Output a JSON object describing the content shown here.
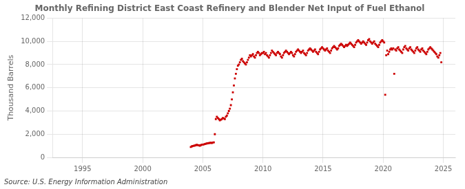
{
  "chart_data": {
    "type": "scatter",
    "title": "Monthly Refining District East Coast Refinery and Blender Net Input of Fuel Ethanol",
    "ylabel": "Thousand Barrels",
    "annotation": "Source: U.S. Energy Information Administration",
    "color": "#CC0000",
    "marker": "square",
    "grid": true,
    "xlim": [
      1992.5,
      2026.0
    ],
    "xticks": [
      1995,
      2000,
      2005,
      2010,
      2015,
      2020,
      2025
    ],
    "ylim": [
      0,
      12000
    ],
    "yticks": [
      0,
      {
        "value": 2000,
        "label": "2,000"
      },
      {
        "value": 4000,
        "label": "4,000"
      },
      {
        "value": 6000,
        "label": "6,000"
      },
      {
        "value": 8000,
        "label": "8,000"
      },
      {
        "value": 10000,
        "label": "10,000"
      },
      {
        "value": 12000,
        "label": "12,000"
      }
    ],
    "x": [
      2004.0,
      2004.083,
      2004.167,
      2004.25,
      2004.333,
      2004.417,
      2004.5,
      2004.583,
      2004.667,
      2004.75,
      2004.833,
      2004.917,
      2005.0,
      2005.083,
      2005.167,
      2005.25,
      2005.333,
      2005.417,
      2005.5,
      2005.583,
      2005.667,
      2005.75,
      2005.833,
      2005.917,
      2006.0,
      2006.083,
      2006.167,
      2006.25,
      2006.333,
      2006.417,
      2006.5,
      2006.583,
      2006.667,
      2006.75,
      2006.833,
      2006.917,
      2007.0,
      2007.083,
      2007.167,
      2007.25,
      2007.333,
      2007.417,
      2007.5,
      2007.583,
      2007.667,
      2007.75,
      2007.833,
      2007.917,
      2008.0,
      2008.083,
      2008.167,
      2008.25,
      2008.333,
      2008.417,
      2008.5,
      2008.583,
      2008.667,
      2008.75,
      2008.833,
      2008.917,
      2009.0,
      2009.083,
      2009.167,
      2009.25,
      2009.333,
      2009.417,
      2009.5,
      2009.583,
      2009.667,
      2009.75,
      2009.833,
      2009.917,
      2010.0,
      2010.083,
      2010.167,
      2010.25,
      2010.333,
      2010.417,
      2010.5,
      2010.583,
      2010.667,
      2010.75,
      2010.833,
      2010.917,
      2011.0,
      2011.083,
      2011.167,
      2011.25,
      2011.333,
      2011.417,
      2011.5,
      2011.583,
      2011.667,
      2011.75,
      2011.833,
      2011.917,
      2012.0,
      2012.083,
      2012.167,
      2012.25,
      2012.333,
      2012.417,
      2012.5,
      2012.583,
      2012.667,
      2012.75,
      2012.833,
      2012.917,
      2013.0,
      2013.083,
      2013.167,
      2013.25,
      2013.333,
      2013.417,
      2013.5,
      2013.583,
      2013.667,
      2013.75,
      2013.833,
      2013.917,
      2014.0,
      2014.083,
      2014.167,
      2014.25,
      2014.333,
      2014.417,
      2014.5,
      2014.583,
      2014.667,
      2014.75,
      2014.833,
      2014.917,
      2015.0,
      2015.083,
      2015.167,
      2015.25,
      2015.333,
      2015.417,
      2015.5,
      2015.583,
      2015.667,
      2015.75,
      2015.833,
      2015.917,
      2016.0,
      2016.083,
      2016.167,
      2016.25,
      2016.333,
      2016.417,
      2016.5,
      2016.583,
      2016.667,
      2016.75,
      2016.833,
      2016.917,
      2017.0,
      2017.083,
      2017.167,
      2017.25,
      2017.333,
      2017.417,
      2017.5,
      2017.583,
      2017.667,
      2017.75,
      2017.833,
      2017.917,
      2018.0,
      2018.083,
      2018.167,
      2018.25,
      2018.333,
      2018.417,
      2018.5,
      2018.583,
      2018.667,
      2018.75,
      2018.833,
      2018.917,
      2019.0,
      2019.083,
      2019.167,
      2019.25,
      2019.333,
      2019.417,
      2019.5,
      2019.583,
      2019.667,
      2019.75,
      2019.833,
      2019.917,
      2020.0,
      2020.083,
      2020.167,
      2020.25,
      2020.333,
      2020.417,
      2020.5,
      2020.583,
      2020.667,
      2020.75,
      2020.833,
      2020.917,
      2021.0,
      2021.083,
      2021.167,
      2021.25,
      2021.333,
      2021.417,
      2021.5,
      2021.583,
      2021.667,
      2021.75,
      2021.833,
      2021.917,
      2022.0,
      2022.083,
      2022.167,
      2022.25,
      2022.333,
      2022.417,
      2022.5,
      2022.583,
      2022.667,
      2022.75,
      2022.833,
      2022.917,
      2023.0,
      2023.083,
      2023.167,
      2023.25,
      2023.333,
      2023.417,
      2023.5,
      2023.583,
      2023.667,
      2023.75,
      2023.833,
      2023.917,
      2024.0,
      2024.083,
      2024.167,
      2024.25,
      2024.333,
      2024.417,
      2024.5,
      2024.583,
      2024.667,
      2024.75,
      2024.833
    ],
    "values": [
      900,
      950,
      980,
      1000,
      1020,
      1050,
      1080,
      1060,
      1040,
      1000,
      1050,
      1100,
      1100,
      1120,
      1150,
      1180,
      1200,
      1220,
      1230,
      1250,
      1260,
      1240,
      1280,
      1300,
      2000,
      3300,
      3500,
      3400,
      3300,
      3200,
      3250,
      3300,
      3400,
      3350,
      3300,
      3500,
      3600,
      3800,
      4000,
      4200,
      4500,
      5000,
      5600,
      6200,
      6800,
      7200,
      7600,
      7900,
      8000,
      8200,
      8400,
      8500,
      8300,
      8200,
      8100,
      8000,
      8200,
      8400,
      8600,
      8800,
      8700,
      8800,
      8900,
      8700,
      8600,
      8800,
      9000,
      9100,
      9000,
      8800,
      8900,
      9000,
      9000,
      9100,
      8900,
      9000,
      8800,
      8700,
      8600,
      8800,
      9000,
      9200,
      9100,
      9000,
      8900,
      8800,
      9000,
      9100,
      9000,
      8900,
      8700,
      8600,
      8800,
      9000,
      9100,
      9200,
      9100,
      9000,
      8900,
      9000,
      9100,
      9000,
      8800,
      8700,
      8900,
      9100,
      9200,
      9300,
      9200,
      9100,
      9000,
      9100,
      9200,
      9000,
      8900,
      8800,
      9000,
      9200,
      9300,
      9400,
      9300,
      9200,
      9100,
      9200,
      9300,
      9100,
      9000,
      8900,
      9100,
      9300,
      9400,
      9500,
      9400,
      9300,
      9200,
      9300,
      9400,
      9200,
      9100,
      9000,
      9200,
      9400,
      9500,
      9600,
      9500,
      9400,
      9300,
      9400,
      9600,
      9700,
      9800,
      9700,
      9600,
      9500,
      9600,
      9700,
      9600,
      9700,
      9800,
      9900,
      9800,
      9700,
      9600,
      9500,
      9700,
      9900,
      10000,
      10100,
      10000,
      9900,
      9800,
      9900,
      10000,
      9900,
      9800,
      9700,
      9900,
      10100,
      10200,
      10000,
      9900,
      9800,
      9900,
      10000,
      9800,
      9700,
      9600,
      9500,
      9700,
      9900,
      10000,
      10100,
      10000,
      9900,
      5400,
      8800,
      9200,
      8900,
      9100,
      9300,
      9400,
      9300,
      9400,
      7200,
      9300,
      9200,
      9400,
      9500,
      9300,
      9200,
      9100,
      9000,
      9300,
      9500,
      9600,
      9400,
      9300,
      9200,
      9400,
      9500,
      9300,
      9200,
      9100,
      9000,
      9200,
      9400,
      9500,
      9300,
      9200,
      9100,
      9300,
      9400,
      9200,
      9100,
      9000,
      8900,
      9100,
      9300,
      9400,
      9500,
      9400,
      9300,
      9200,
      9100,
      9000,
      8900,
      8700,
      8600,
      8800,
      9000,
      8200
    ]
  }
}
